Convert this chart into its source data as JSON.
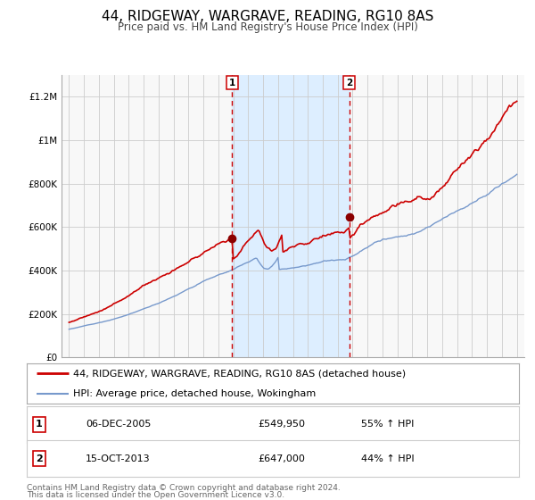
{
  "title": "44, RIDGEWAY, WARGRAVE, READING, RG10 8AS",
  "subtitle": "Price paid vs. HM Land Registry's House Price Index (HPI)",
  "legend_line1": "44, RIDGEWAY, WARGRAVE, READING, RG10 8AS (detached house)",
  "legend_line2": "HPI: Average price, detached house, Wokingham",
  "footnote1": "Contains HM Land Registry data © Crown copyright and database right 2024.",
  "footnote2": "This data is licensed under the Open Government Licence v3.0.",
  "sale1_label": "1",
  "sale1_date": "06-DEC-2005",
  "sale1_price": "£549,950",
  "sale1_hpi": "55% ↑ HPI",
  "sale2_label": "2",
  "sale2_date": "15-OCT-2013",
  "sale2_price": "£647,000",
  "sale2_hpi": "44% ↑ HPI",
  "marker1_x": 2005.92,
  "marker1_y": 549950,
  "marker2_x": 2013.79,
  "marker2_y": 647000,
  "vline1_x": 2005.92,
  "vline2_x": 2013.79,
  "shade_xmin": 2005.92,
  "shade_xmax": 2013.79,
  "ylim": [
    0,
    1300000
  ],
  "xlim_min": 1994.5,
  "xlim_max": 2025.5,
  "yticks": [
    0,
    200000,
    400000,
    600000,
    800000,
    1000000,
    1200000
  ],
  "ytick_labels": [
    "£0",
    "£200K",
    "£400K",
    "£600K",
    "£800K",
    "£1M",
    "£1.2M"
  ],
  "xticks": [
    1995,
    1996,
    1997,
    1998,
    1999,
    2000,
    2001,
    2002,
    2003,
    2004,
    2005,
    2006,
    2007,
    2008,
    2009,
    2010,
    2011,
    2012,
    2013,
    2014,
    2015,
    2016,
    2017,
    2018,
    2019,
    2020,
    2021,
    2022,
    2023,
    2024,
    2025
  ],
  "red_line_color": "#cc0000",
  "blue_line_color": "#7799cc",
  "shade_color": "#ddeeff",
  "grid_color": "#cccccc",
  "bg_color": "#ffffff",
  "plot_bg_color": "#f8f8f8"
}
